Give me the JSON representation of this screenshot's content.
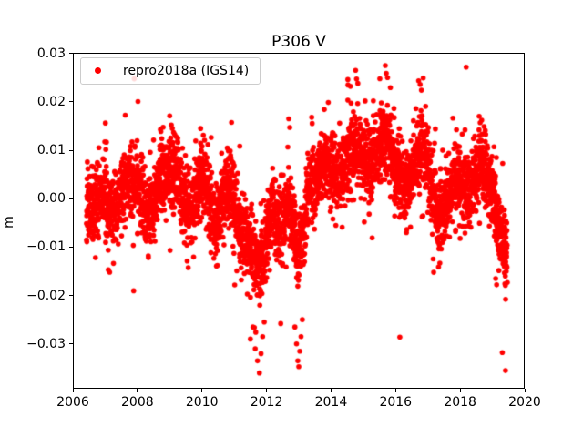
{
  "figure": {
    "title": "P306 V",
    "ylabel": "m"
  },
  "legend": {
    "label": "repro2018a (IGS14)",
    "marker_color": "#ff0000",
    "position": "upper left"
  },
  "chart_data": {
    "type": "scatter",
    "title": "P306 V",
    "xlabel": "",
    "ylabel": "m",
    "xlim": [
      2006,
      2020
    ],
    "ylim": [
      -0.0393,
      0.0302
    ],
    "xticks": [
      2006,
      2008,
      2010,
      2012,
      2014,
      2016,
      2018,
      2020
    ],
    "xtick_labels": [
      "2006",
      "2008",
      "2010",
      "2012",
      "2014",
      "2016",
      "2018",
      "2020"
    ],
    "yticks": [
      0.03,
      0.02,
      0.01,
      0.0,
      -0.01,
      -0.02,
      -0.03
    ],
    "ytick_labels": [
      "0.03",
      "0.02",
      "0.01",
      "0.00",
      "−0.01",
      "−0.02",
      "−0.03"
    ],
    "grid": false,
    "legend_position": "upper left",
    "series": [
      {
        "name": "repro2018a (IGS14)",
        "color": "#ff0000",
        "marker": "dot",
        "marker_size_px": 6,
        "x_start": 2006.42,
        "x_end": 2019.46,
        "n_points": 4200,
        "noise_std": 0.0038,
        "seed": 42,
        "mean_anchors": [
          [
            2006.42,
            -0.0015
          ],
          [
            2006.6,
            -0.0025
          ],
          [
            2006.8,
            0.0005
          ],
          [
            2006.95,
            0.0015
          ],
          [
            2007.1,
            -0.0025
          ],
          [
            2007.3,
            -0.003
          ],
          [
            2007.6,
            0.002
          ],
          [
            2007.75,
            0.0035
          ],
          [
            2007.95,
            0.003
          ],
          [
            2008.15,
            0.0005
          ],
          [
            2008.3,
            -0.004
          ],
          [
            2008.55,
            0.0
          ],
          [
            2008.7,
            0.005
          ],
          [
            2008.9,
            0.0045
          ],
          [
            2009.1,
            0.006
          ],
          [
            2009.3,
            0.0045
          ],
          [
            2009.5,
            -0.0015
          ],
          [
            2009.7,
            -0.002
          ],
          [
            2009.95,
            0.0045
          ],
          [
            2010.1,
            0.003
          ],
          [
            2010.37,
            -0.0045
          ],
          [
            2010.6,
            -0.002
          ],
          [
            2010.8,
            0.0025
          ],
          [
            2010.95,
            0.001
          ],
          [
            2011.15,
            -0.006
          ],
          [
            2011.3,
            -0.008
          ],
          [
            2011.45,
            -0.01
          ],
          [
            2011.7,
            -0.013
          ],
          [
            2011.85,
            -0.0145
          ],
          [
            2012.0,
            -0.007
          ],
          [
            2012.2,
            -0.003
          ],
          [
            2012.45,
            -0.006
          ],
          [
            2012.7,
            -0.0005
          ],
          [
            2012.9,
            -0.009
          ],
          [
            2013.0,
            -0.0125
          ],
          [
            2013.12,
            -0.0075
          ],
          [
            2013.3,
            0.001
          ],
          [
            2013.55,
            0.0045
          ],
          [
            2013.8,
            0.007
          ],
          [
            2014.0,
            0.006
          ],
          [
            2014.2,
            0.004
          ],
          [
            2014.45,
            0.0075
          ],
          [
            2014.75,
            0.0115
          ],
          [
            2014.95,
            0.009
          ],
          [
            2015.2,
            0.006
          ],
          [
            2015.45,
            0.009
          ],
          [
            2015.7,
            0.0125
          ],
          [
            2015.9,
            0.009
          ],
          [
            2016.1,
            0.005
          ],
          [
            2016.3,
            0.002
          ],
          [
            2016.55,
            0.007
          ],
          [
            2016.8,
            0.0105
          ],
          [
            2016.95,
            0.0075
          ],
          [
            2017.15,
            0.001
          ],
          [
            2017.35,
            -0.005
          ],
          [
            2017.6,
            0.0
          ],
          [
            2017.85,
            0.005
          ],
          [
            2018.0,
            0.004
          ],
          [
            2018.2,
            0.0005
          ],
          [
            2018.45,
            0.0045
          ],
          [
            2018.65,
            0.0075
          ],
          [
            2018.85,
            0.004
          ],
          [
            2019.05,
            -0.0005
          ],
          [
            2019.2,
            -0.006
          ],
          [
            2019.35,
            -0.01
          ],
          [
            2019.46,
            -0.0115
          ]
        ],
        "outliers": [
          [
            2006.7,
            -0.0122
          ],
          [
            2007.1,
            -0.0147
          ],
          [
            2007.14,
            -0.0152
          ],
          [
            2008.34,
            -0.0122
          ],
          [
            2009.0,
            0.0171
          ],
          [
            2009.05,
            0.0152
          ],
          [
            2009.08,
            0.0145
          ],
          [
            2011.08,
            -0.0149
          ],
          [
            2011.22,
            -0.0168
          ],
          [
            2011.5,
            -0.029
          ],
          [
            2011.58,
            -0.0265
          ],
          [
            2011.65,
            -0.031
          ],
          [
            2011.72,
            -0.0335
          ],
          [
            2011.78,
            -0.036
          ],
          [
            2011.83,
            -0.032
          ],
          [
            2011.88,
            -0.0285
          ],
          [
            2011.93,
            -0.0255
          ],
          [
            2012.44,
            -0.0258
          ],
          [
            2012.69,
            0.0165
          ],
          [
            2012.72,
            0.0147
          ],
          [
            2012.88,
            -0.0265
          ],
          [
            2012.93,
            -0.03
          ],
          [
            2012.97,
            -0.0335
          ],
          [
            2013.0,
            -0.0347
          ],
          [
            2013.03,
            -0.0315
          ],
          [
            2013.07,
            -0.0285
          ],
          [
            2013.11,
            -0.025
          ],
          [
            2013.4,
            0.0168
          ],
          [
            2013.79,
            0.0184
          ],
          [
            2014.52,
            0.0246
          ],
          [
            2014.6,
            0.0232
          ],
          [
            2014.76,
            0.0265
          ],
          [
            2014.79,
            0.0247
          ],
          [
            2014.83,
            0.0238
          ],
          [
            2015.68,
            0.0275
          ],
          [
            2015.71,
            0.0259
          ],
          [
            2015.75,
            0.025
          ],
          [
            2016.76,
            0.0236
          ],
          [
            2016.8,
            0.0224
          ],
          [
            2017.33,
            -0.0141
          ],
          [
            2017.37,
            -0.0133
          ],
          [
            2018.59,
            0.017
          ],
          [
            2018.62,
            0.0157
          ],
          [
            2019.1,
            -0.0165
          ],
          [
            2019.13,
            -0.0178
          ],
          [
            2019.4,
            -0.016
          ],
          [
            2019.43,
            -0.015
          ]
        ]
      }
    ]
  }
}
